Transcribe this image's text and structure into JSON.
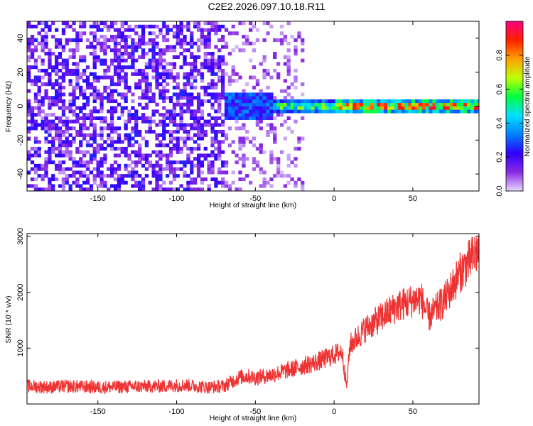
{
  "title": "C2E2.2026.097.10.18.R11",
  "chart_data": [
    {
      "type": "heatmap",
      "xlabel": "Height of straight line (km)",
      "ylabel": "Frequency (Hz)",
      "xlim": [
        -195,
        92
      ],
      "ylim": [
        -50,
        50
      ],
      "xticks": [
        -150,
        -100,
        -50,
        0,
        50
      ],
      "yticks": [
        -40,
        -20,
        0,
        20,
        40
      ],
      "colorbar": {
        "label": "Normalized spectral amplitude",
        "range": [
          0.0,
          1.0
        ],
        "ticks": [
          "0.0",
          "0.2",
          "0.4",
          "0.6",
          "0.8"
        ],
        "colors": [
          "#e6d8ff",
          "#8a2be2",
          "#3000ff",
          "#0080ff",
          "#00e0ff",
          "#00ff40",
          "#c0ff00",
          "#ffa000",
          "#ff2000",
          "#ff0080"
        ]
      },
      "features": [
        {
          "x_range": [
            -195,
            -70
          ],
          "freq_range": [
            -50,
            50
          ],
          "amplitude": 0.1
        },
        {
          "x_range": [
            -70,
            -20
          ],
          "freq_range": [
            -50,
            50
          ],
          "amplitude": 0.05
        },
        {
          "x_range": [
            -70,
            -40
          ],
          "freq_range": [
            -8,
            8
          ],
          "amplitude": 0.3
        },
        {
          "x_range": [
            -40,
            0
          ],
          "freq_range": [
            -4,
            4
          ],
          "amplitude": 0.55
        },
        {
          "x_range": [
            0,
            92
          ],
          "freq_range": [
            -3,
            3
          ],
          "amplitude": 0.8
        }
      ]
    },
    {
      "type": "line",
      "xlabel": "Height of straight line (km)",
      "ylabel": "SNR (10 * v/v)",
      "xlim": [
        -195,
        92
      ],
      "ylim": [
        0,
        3050
      ],
      "xticks": [
        -150,
        -100,
        -50,
        0,
        50
      ],
      "yticks": [
        1000,
        2000,
        3000
      ],
      "color": "#ee3333",
      "x": [
        -195,
        -180,
        -170,
        -150,
        -130,
        -110,
        -95,
        -80,
        -70,
        -60,
        -55,
        -50,
        -40,
        -30,
        -20,
        -10,
        0,
        5,
        8,
        10,
        20,
        30,
        40,
        50,
        55,
        60,
        70,
        80,
        90,
        92
      ],
      "y": [
        320,
        300,
        320,
        300,
        310,
        320,
        340,
        300,
        320,
        480,
        500,
        470,
        520,
        600,
        680,
        760,
        880,
        950,
        300,
        1050,
        1350,
        1550,
        1750,
        1850,
        1900,
        1550,
        1850,
        2350,
        2700,
        2750
      ]
    }
  ],
  "tick_labels": {
    "x": [
      "-150",
      "-100",
      "-50",
      "0",
      "50"
    ],
    "y_top": [
      "-40",
      "-20",
      "0",
      "20",
      "40"
    ],
    "y_bottom": [
      "1000",
      "2000",
      "3000"
    ]
  }
}
